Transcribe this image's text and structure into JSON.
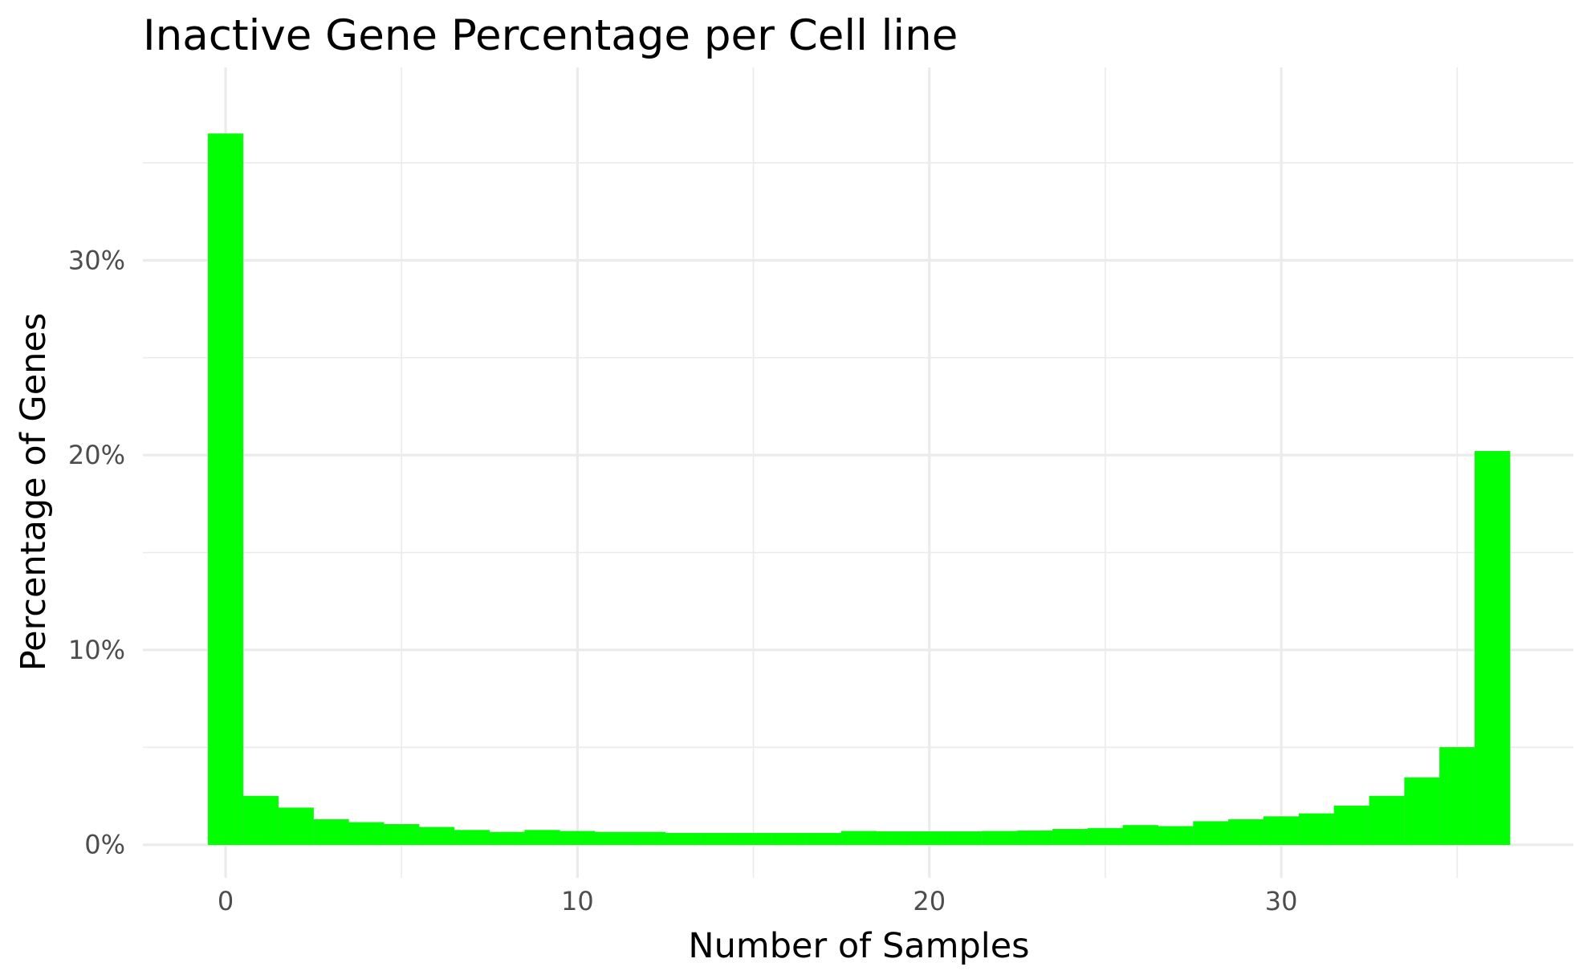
{
  "chart_data": {
    "type": "bar",
    "title": "Inactive Gene Percentage per Cell line",
    "xlabel": "Number of Samples",
    "ylabel": "Percentage of Genes",
    "x_ticks": [
      0,
      10,
      20,
      30
    ],
    "x_tick_labels": [
      "0",
      "10",
      "20",
      "30"
    ],
    "y_ticks": [
      0,
      10,
      20,
      30
    ],
    "y_tick_labels": [
      "0%",
      "10%",
      "20%",
      "30%"
    ],
    "xlim": [
      -2.35,
      38.3
    ],
    "ylim": [
      -1.7,
      39.9
    ],
    "grid": true,
    "bar_color": "#00ff00",
    "series": [
      {
        "name": "Percentage of Genes",
        "x": [
          0,
          1,
          2,
          3,
          4,
          5,
          6,
          7,
          8,
          9,
          10,
          11,
          12,
          13,
          14,
          15,
          16,
          17,
          18,
          19,
          20,
          21,
          22,
          23,
          24,
          25,
          26,
          27,
          28,
          29,
          30,
          31,
          32,
          33,
          34,
          35,
          36
        ],
        "values": [
          36.5,
          2.5,
          1.9,
          1.3,
          1.15,
          1.05,
          0.9,
          0.75,
          0.65,
          0.75,
          0.7,
          0.65,
          0.65,
          0.6,
          0.6,
          0.6,
          0.6,
          0.6,
          0.7,
          0.68,
          0.68,
          0.68,
          0.7,
          0.72,
          0.8,
          0.85,
          1.0,
          0.95,
          1.2,
          1.3,
          1.45,
          1.6,
          2.0,
          2.5,
          3.45,
          5.0,
          20.2
        ]
      }
    ]
  }
}
